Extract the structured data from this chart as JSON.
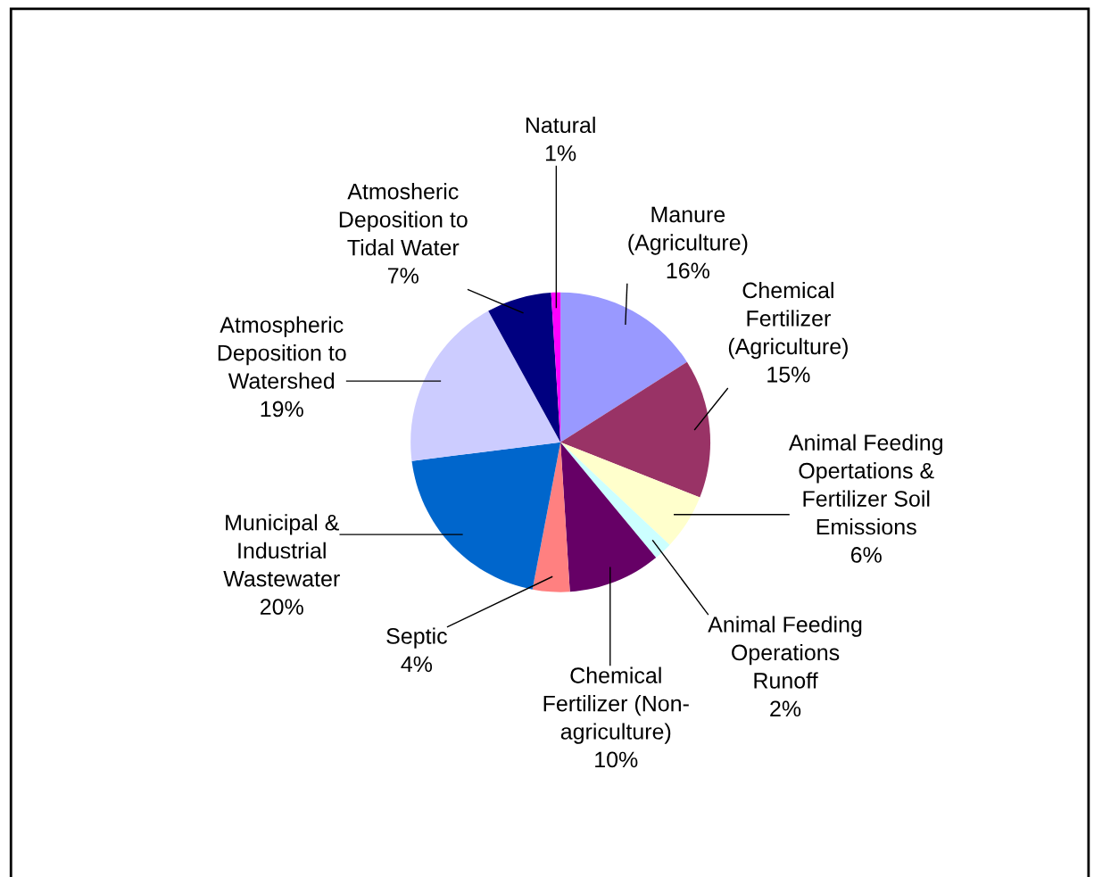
{
  "chart_data": {
    "type": "pie",
    "categories": [
      "Manure\n(Agriculture)",
      "Chemical\nFertilizer\n(Agriculture)",
      "Animal Feeding\nOpertations &\nFertilizer Soil\nEmissions",
      "Animal Feeding\nOperations\nRunoff",
      "Chemical\nFertilizer (Non-\nagriculture)",
      "Septic",
      "Municipal &\nIndustrial\nWastewater",
      "Atmospheric\nDeposition to\nWatershed",
      "Atmosheric\nDeposition to\nTidal Water",
      "Natural"
    ],
    "values": [
      16,
      15,
      6,
      2,
      10,
      4,
      20,
      19,
      7,
      1
    ],
    "value_labels": [
      "16%",
      "15%",
      "6%",
      "2%",
      "10%",
      "4%",
      "20%",
      "19%",
      "7%",
      "1%"
    ],
    "colors": [
      "#9999ff",
      "#993366",
      "#ffffcc",
      "#ccffff",
      "#660066",
      "#ff8080",
      "#0066cc",
      "#ccccff",
      "#000080",
      "#ff00ff"
    ]
  }
}
